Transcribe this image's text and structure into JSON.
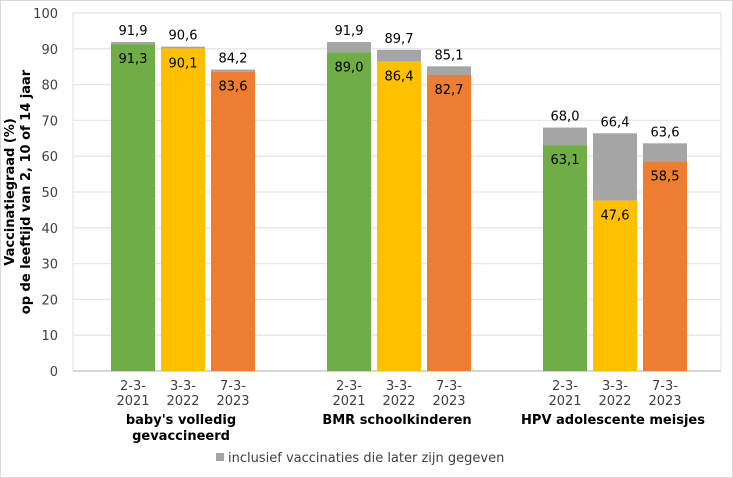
{
  "chart_data": {
    "type": "bar",
    "stacked": true,
    "title": "",
    "ylabel_lines": [
      "Vaccinatiegraad (%)",
      "op de leeftijd van 2, 10 of 14 jaar"
    ],
    "xlabel": "",
    "ylim": [
      0,
      100
    ],
    "yticks": [
      0,
      10,
      20,
      30,
      40,
      50,
      60,
      70,
      80,
      90,
      100
    ],
    "grid": true,
    "groups": [
      {
        "name_lines": [
          "baby's volledig",
          "gevaccineerd"
        ],
        "bars": [
          {
            "date_lines": [
              "2-3-",
              "2021"
            ],
            "base": 91.3,
            "total": 91.9,
            "base_label": "91,3",
            "total_label": "91,9",
            "color": "#70ad47"
          },
          {
            "date_lines": [
              "3-3-",
              "2022"
            ],
            "base": 90.1,
            "total": 90.6,
            "base_label": "90,1",
            "total_label": "90,6",
            "color": "#ffc000"
          },
          {
            "date_lines": [
              "7-3-",
              "2023"
            ],
            "base": 83.6,
            "total": 84.2,
            "base_label": "83,6",
            "total_label": "84,2",
            "color": "#ed7d31"
          }
        ]
      },
      {
        "name_lines": [
          "BMR schoolkinderen"
        ],
        "bars": [
          {
            "date_lines": [
              "2-3-",
              "2021"
            ],
            "base": 89.0,
            "total": 91.9,
            "base_label": "89,0",
            "total_label": "91,9",
            "color": "#70ad47"
          },
          {
            "date_lines": [
              "3-3-",
              "2022"
            ],
            "base": 86.4,
            "total": 89.7,
            "base_label": "86,4",
            "total_label": "89,7",
            "color": "#ffc000"
          },
          {
            "date_lines": [
              "7-3-",
              "2023"
            ],
            "base": 82.7,
            "total": 85.1,
            "base_label": "82,7",
            "total_label": "85,1",
            "color": "#ed7d31"
          }
        ]
      },
      {
        "name_lines": [
          "HPV adolescente meisjes"
        ],
        "bars": [
          {
            "date_lines": [
              "2-3-",
              "2021"
            ],
            "base": 63.1,
            "total": 68.0,
            "base_label": "63,1",
            "total_label": "68,0",
            "color": "#70ad47"
          },
          {
            "date_lines": [
              "3-3-",
              "2022"
            ],
            "base": 47.6,
            "total": 66.4,
            "base_label": "47,6",
            "total_label": "66,4",
            "color": "#ffc000"
          },
          {
            "date_lines": [
              "7-3-",
              "2023"
            ],
            "base": 58.5,
            "total": 63.6,
            "base_label": "58,5",
            "total_label": "63,6",
            "color": "#ed7d31"
          }
        ]
      }
    ],
    "extra_series": {
      "name": "inclusief vaccinaties die later zijn gegeven",
      "color": "#a5a5a5"
    },
    "legend": {
      "position": "bottom",
      "entries": [
        "inclusief vaccinaties die later zijn gegeven"
      ]
    }
  }
}
